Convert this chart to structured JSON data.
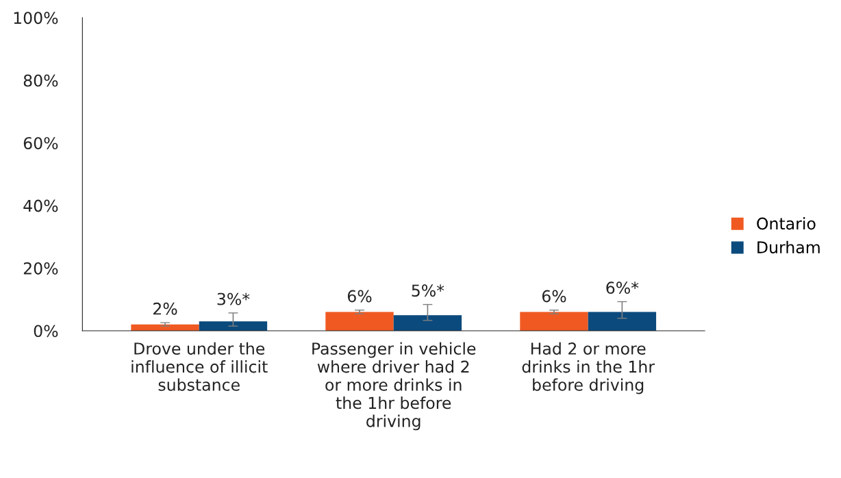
{
  "chart_data": {
    "type": "bar",
    "categories": [
      "Drove under the\ninfluence of illicit\nsubstance",
      "Passenger in vehicle\nwhere driver had 2\nor more drinks in\nthe 1hr before\ndriving",
      "Had 2 or more\ndrinks in the 1hr\nbefore driving"
    ],
    "series": [
      {
        "name": "Ontario",
        "color": "#f05a22",
        "values": [
          2,
          6,
          6
        ],
        "value_labels": [
          "2%",
          "6%",
          "6%"
        ],
        "errors": [
          [
            1.5,
            2.6
          ],
          [
            5.4,
            6.6
          ],
          [
            5.4,
            6.6
          ]
        ]
      },
      {
        "name": "Durham",
        "color": "#0b4a7d",
        "values": [
          3,
          5,
          6
        ],
        "value_labels": [
          "3%*",
          "5%*",
          "6%*"
        ],
        "errors": [
          [
            1.5,
            5.7
          ],
          [
            3.3,
            8.4
          ],
          [
            4.0,
            9.3
          ]
        ]
      }
    ],
    "ylim": [
      0,
      100
    ],
    "yticks": [
      {
        "value": 0,
        "label": "0%"
      },
      {
        "value": 20,
        "label": "20%"
      },
      {
        "value": 40,
        "label": "40%"
      },
      {
        "value": 60,
        "label": "60%"
      },
      {
        "value": 80,
        "label": "80%"
      },
      {
        "value": 100,
        "label": "100%"
      }
    ],
    "grid": false,
    "legend": "right"
  }
}
